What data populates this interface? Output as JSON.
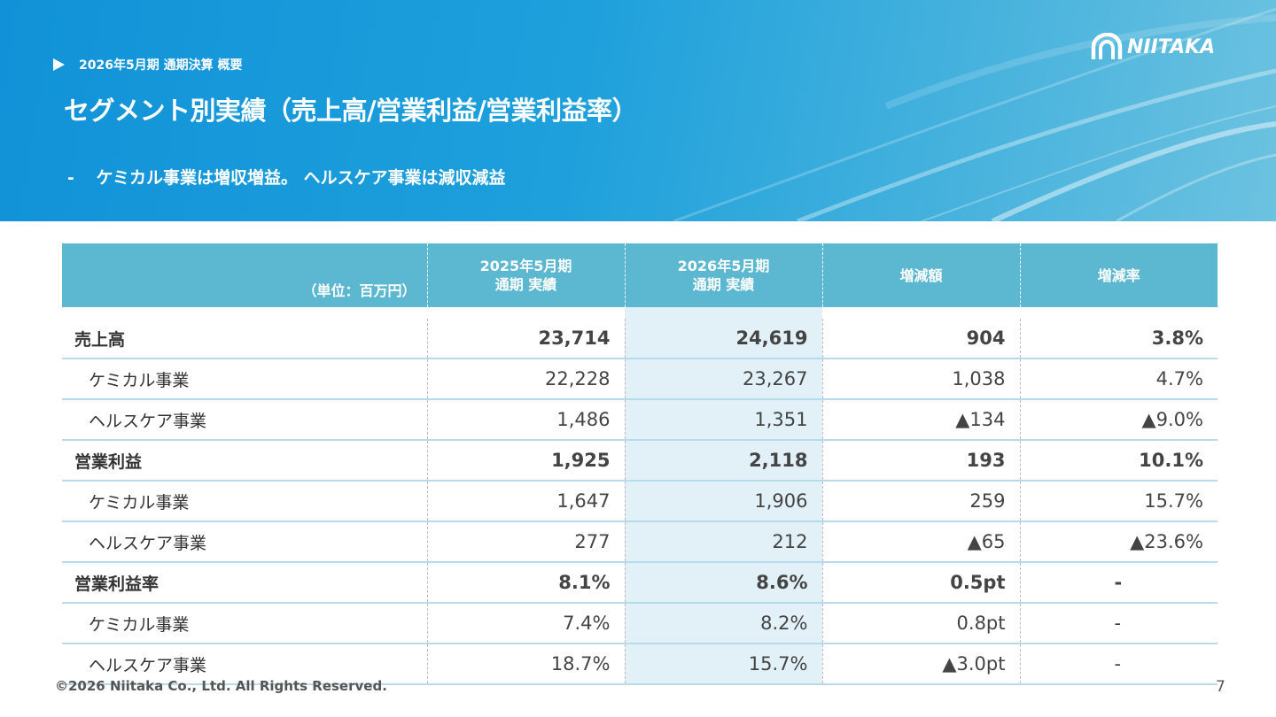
{
  "header": {
    "breadcrumb": "2026年5月期 通期決算 概要",
    "title": "セグメント別実績（売上高/営業利益/営業利益率）",
    "subtitle_dash": "-",
    "subtitle": "ケミカル事業は増収増益。 ヘルスケア事業は減収減益",
    "logo_text": "NIITAKA"
  },
  "table": {
    "unit": "（単位：百万円）",
    "columns": [
      {
        "line1": "2025年5月期",
        "line2": "通期 実績"
      },
      {
        "line1": "2026年5月期",
        "line2": "通期 実績"
      },
      {
        "line1": "増減額",
        "line2": ""
      },
      {
        "line1": "増減率",
        "line2": ""
      }
    ],
    "rows": [
      {
        "label": "売上高",
        "cells": [
          "23,714",
          "24,619",
          "904",
          "3.8%"
        ]
      },
      {
        "label": "ケミカル事業",
        "cells": [
          "22,228",
          "23,267",
          "1,038",
          "4.7%"
        ]
      },
      {
        "label": "ヘルスケア事業",
        "cells": [
          "1,486",
          "1,351",
          "▲134",
          "▲9.0%"
        ]
      },
      {
        "label": "営業利益",
        "cells": [
          "1,925",
          "2,118",
          "193",
          "10.1%"
        ]
      },
      {
        "label": "ケミカル事業",
        "cells": [
          "1,647",
          "1,906",
          "259",
          "15.7%"
        ]
      },
      {
        "label": "ヘルスケア事業",
        "cells": [
          "277",
          "212",
          "▲65",
          "▲23.6%"
        ]
      },
      {
        "label": "営業利益率",
        "cells": [
          "8.1%",
          "8.6%",
          "0.5pt",
          "-"
        ]
      },
      {
        "label": "ケミカル事業",
        "cells": [
          "7.4%",
          "8.2%",
          "0.8pt",
          "-"
        ]
      },
      {
        "label": "ヘルスケア事業",
        "cells": [
          "18.7%",
          "15.7%",
          "▲3.0pt",
          "-"
        ]
      }
    ]
  },
  "footer": {
    "copyright": "©2026 Niitaka Co., Ltd.  All Rights Reserved.",
    "page": "7"
  },
  "colors": {
    "header_blue": "#1192d8",
    "table_header": "#5cb7d0",
    "highlight_column": "#e2f1f7",
    "row_border": "#b5dcea"
  }
}
